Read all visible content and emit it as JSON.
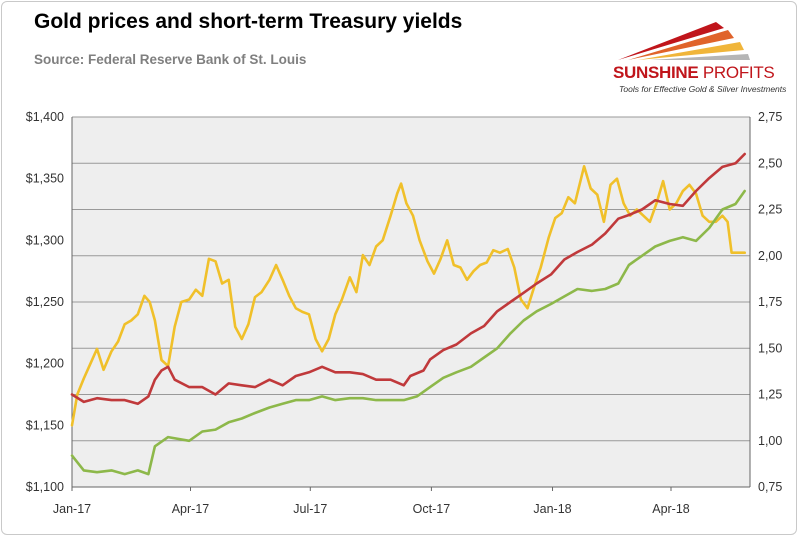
{
  "title": "Gold prices and short-term Treasury yields",
  "subtitle": "Source: Federal Reserve Bank of St. Louis",
  "logo": {
    "name_part1": "SUNSHINE",
    "name_part2": "PROFITS",
    "tagline": "Tools for Effective Gold & Silver Investments"
  },
  "colors": {
    "gold_price": "#f0c02a",
    "yield_red": "#c0393b",
    "yield_green": "#8db84a",
    "plot_background": "#eeeeee",
    "grid": "#999999"
  },
  "chart_data": {
    "type": "line",
    "title": "Gold prices and short-term Treasury yields",
    "legend": "none",
    "grid": true,
    "x": {
      "range": [
        "2017-01-01",
        "2018-05-31"
      ],
      "ticks": [
        {
          "date": "2017-01-01",
          "label": "Jan-17"
        },
        {
          "date": "2017-04-01",
          "label": "Apr-17"
        },
        {
          "date": "2017-07-01",
          "label": "Jul-17"
        },
        {
          "date": "2017-10-01",
          "label": "Oct-17"
        },
        {
          "date": "2018-01-01",
          "label": "Jan-18"
        },
        {
          "date": "2018-04-01",
          "label": "Apr-18"
        }
      ]
    },
    "y_left": {
      "range": [
        1100,
        1400
      ],
      "ticks": [
        1100,
        1150,
        1200,
        1250,
        1300,
        1350,
        1400
      ],
      "tick_labels": [
        "$1,100",
        "$1,150",
        "$1,200",
        "$1,250",
        "$1,300",
        "$1,350",
        "$1,400"
      ]
    },
    "y_right": {
      "range": [
        0.75,
        2.75
      ],
      "ticks": [
        0.75,
        1.0,
        1.25,
        1.5,
        1.75,
        2.0,
        2.25,
        2.5,
        2.75
      ],
      "tick_labels": [
        "0,75",
        "1,00",
        "1,25",
        "1,50",
        "1,75",
        "2,00",
        "2,25",
        "2,50",
        "2,75"
      ]
    },
    "series": [
      {
        "axis": "left",
        "color": "#f0c02a",
        "points": [
          [
            "2017-01-01",
            1150
          ],
          [
            "2017-01-05",
            1175
          ],
          [
            "2017-01-10",
            1188
          ],
          [
            "2017-01-15",
            1200
          ],
          [
            "2017-01-20",
            1212
          ],
          [
            "2017-01-25",
            1195
          ],
          [
            "2017-01-31",
            1210
          ],
          [
            "2017-02-05",
            1218
          ],
          [
            "2017-02-10",
            1232
          ],
          [
            "2017-02-15",
            1235
          ],
          [
            "2017-02-20",
            1240
          ],
          [
            "2017-02-25",
            1255
          ],
          [
            "2017-03-01",
            1250
          ],
          [
            "2017-03-05",
            1235
          ],
          [
            "2017-03-10",
            1203
          ],
          [
            "2017-03-15",
            1198
          ],
          [
            "2017-03-20",
            1230
          ],
          [
            "2017-03-25",
            1250
          ],
          [
            "2017-03-31",
            1252
          ],
          [
            "2017-04-05",
            1260
          ],
          [
            "2017-04-10",
            1255
          ],
          [
            "2017-04-15",
            1285
          ],
          [
            "2017-04-20",
            1283
          ],
          [
            "2017-04-25",
            1265
          ],
          [
            "2017-04-30",
            1268
          ],
          [
            "2017-05-05",
            1230
          ],
          [
            "2017-05-10",
            1220
          ],
          [
            "2017-05-15",
            1232
          ],
          [
            "2017-05-20",
            1254
          ],
          [
            "2017-05-25",
            1258
          ],
          [
            "2017-05-31",
            1268
          ],
          [
            "2017-06-05",
            1280
          ],
          [
            "2017-06-10",
            1268
          ],
          [
            "2017-06-15",
            1255
          ],
          [
            "2017-06-20",
            1245
          ],
          [
            "2017-06-25",
            1242
          ],
          [
            "2017-06-30",
            1240
          ],
          [
            "2017-07-05",
            1220
          ],
          [
            "2017-07-10",
            1210
          ],
          [
            "2017-07-15",
            1220
          ],
          [
            "2017-07-20",
            1240
          ],
          [
            "2017-07-25",
            1252
          ],
          [
            "2017-07-31",
            1270
          ],
          [
            "2017-08-05",
            1258
          ],
          [
            "2017-08-10",
            1288
          ],
          [
            "2017-08-15",
            1280
          ],
          [
            "2017-08-20",
            1295
          ],
          [
            "2017-08-25",
            1300
          ],
          [
            "2017-08-31",
            1320
          ],
          [
            "2017-09-05",
            1338
          ],
          [
            "2017-09-08",
            1346
          ],
          [
            "2017-09-12",
            1330
          ],
          [
            "2017-09-17",
            1320
          ],
          [
            "2017-09-22",
            1300
          ],
          [
            "2017-09-28",
            1283
          ],
          [
            "2017-10-03",
            1273
          ],
          [
            "2017-10-08",
            1285
          ],
          [
            "2017-10-13",
            1300
          ],
          [
            "2017-10-18",
            1280
          ],
          [
            "2017-10-23",
            1278
          ],
          [
            "2017-10-28",
            1268
          ],
          [
            "2017-11-02",
            1275
          ],
          [
            "2017-11-07",
            1280
          ],
          [
            "2017-11-12",
            1282
          ],
          [
            "2017-11-17",
            1292
          ],
          [
            "2017-11-22",
            1290
          ],
          [
            "2017-11-28",
            1293
          ],
          [
            "2017-12-03",
            1278
          ],
          [
            "2017-12-08",
            1252
          ],
          [
            "2017-12-13",
            1245
          ],
          [
            "2017-12-18",
            1262
          ],
          [
            "2017-12-23",
            1278
          ],
          [
            "2017-12-29",
            1302
          ],
          [
            "2018-01-03",
            1318
          ],
          [
            "2018-01-08",
            1322
          ],
          [
            "2018-01-13",
            1335
          ],
          [
            "2018-01-18",
            1330
          ],
          [
            "2018-01-25",
            1360
          ],
          [
            "2018-01-30",
            1342
          ],
          [
            "2018-02-04",
            1337
          ],
          [
            "2018-02-09",
            1315
          ],
          [
            "2018-02-14",
            1345
          ],
          [
            "2018-02-19",
            1350
          ],
          [
            "2018-02-24",
            1330
          ],
          [
            "2018-03-01",
            1320
          ],
          [
            "2018-03-06",
            1325
          ],
          [
            "2018-03-11",
            1320
          ],
          [
            "2018-03-16",
            1315
          ],
          [
            "2018-03-21",
            1330
          ],
          [
            "2018-03-26",
            1348
          ],
          [
            "2018-03-31",
            1325
          ],
          [
            "2018-04-05",
            1330
          ],
          [
            "2018-04-10",
            1340
          ],
          [
            "2018-04-15",
            1345
          ],
          [
            "2018-04-20",
            1338
          ],
          [
            "2018-04-25",
            1320
          ],
          [
            "2018-04-30",
            1315
          ],
          [
            "2018-05-05",
            1315
          ],
          [
            "2018-05-10",
            1320
          ],
          [
            "2018-05-14",
            1315
          ],
          [
            "2018-05-17",
            1290
          ],
          [
            "2018-05-22",
            1290
          ],
          [
            "2018-05-27",
            1290
          ]
        ]
      },
      {
        "axis": "right",
        "color": "#c0393b",
        "points": [
          [
            "2017-01-01",
            1.25
          ],
          [
            "2017-01-10",
            1.21
          ],
          [
            "2017-01-20",
            1.23
          ],
          [
            "2017-01-31",
            1.22
          ],
          [
            "2017-02-10",
            1.22
          ],
          [
            "2017-02-20",
            1.2
          ],
          [
            "2017-02-28",
            1.24
          ],
          [
            "2017-03-05",
            1.33
          ],
          [
            "2017-03-10",
            1.38
          ],
          [
            "2017-03-15",
            1.4
          ],
          [
            "2017-03-20",
            1.33
          ],
          [
            "2017-03-31",
            1.29
          ],
          [
            "2017-04-10",
            1.29
          ],
          [
            "2017-04-20",
            1.25
          ],
          [
            "2017-04-30",
            1.31
          ],
          [
            "2017-05-10",
            1.3
          ],
          [
            "2017-05-20",
            1.29
          ],
          [
            "2017-05-31",
            1.33
          ],
          [
            "2017-06-10",
            1.3
          ],
          [
            "2017-06-20",
            1.35
          ],
          [
            "2017-06-30",
            1.37
          ],
          [
            "2017-07-10",
            1.4
          ],
          [
            "2017-07-20",
            1.37
          ],
          [
            "2017-07-31",
            1.37
          ],
          [
            "2017-08-10",
            1.36
          ],
          [
            "2017-08-20",
            1.33
          ],
          [
            "2017-08-31",
            1.33
          ],
          [
            "2017-09-10",
            1.3
          ],
          [
            "2017-09-15",
            1.35
          ],
          [
            "2017-09-25",
            1.38
          ],
          [
            "2017-09-30",
            1.44
          ],
          [
            "2017-10-10",
            1.49
          ],
          [
            "2017-10-20",
            1.52
          ],
          [
            "2017-10-31",
            1.58
          ],
          [
            "2017-11-10",
            1.62
          ],
          [
            "2017-11-20",
            1.7
          ],
          [
            "2017-11-30",
            1.75
          ],
          [
            "2017-12-10",
            1.8
          ],
          [
            "2017-12-20",
            1.85
          ],
          [
            "2017-12-31",
            1.9
          ],
          [
            "2018-01-10",
            1.98
          ],
          [
            "2018-01-20",
            2.02
          ],
          [
            "2018-01-31",
            2.06
          ],
          [
            "2018-02-10",
            2.12
          ],
          [
            "2018-02-20",
            2.2
          ],
          [
            "2018-02-28",
            2.22
          ],
          [
            "2018-03-10",
            2.25
          ],
          [
            "2018-03-20",
            2.3
          ],
          [
            "2018-03-31",
            2.28
          ],
          [
            "2018-04-10",
            2.27
          ],
          [
            "2018-04-20",
            2.35
          ],
          [
            "2018-04-30",
            2.42
          ],
          [
            "2018-05-10",
            2.48
          ],
          [
            "2018-05-20",
            2.5
          ],
          [
            "2018-05-27",
            2.55
          ]
        ]
      },
      {
        "axis": "right",
        "color": "#8db84a",
        "points": [
          [
            "2017-01-01",
            0.92
          ],
          [
            "2017-01-10",
            0.84
          ],
          [
            "2017-01-20",
            0.83
          ],
          [
            "2017-01-31",
            0.84
          ],
          [
            "2017-02-10",
            0.82
          ],
          [
            "2017-02-20",
            0.84
          ],
          [
            "2017-02-28",
            0.82
          ],
          [
            "2017-03-05",
            0.97
          ],
          [
            "2017-03-15",
            1.02
          ],
          [
            "2017-03-31",
            1.0
          ],
          [
            "2017-04-10",
            1.05
          ],
          [
            "2017-04-20",
            1.06
          ],
          [
            "2017-04-30",
            1.1
          ],
          [
            "2017-05-10",
            1.12
          ],
          [
            "2017-05-20",
            1.15
          ],
          [
            "2017-05-31",
            1.18
          ],
          [
            "2017-06-10",
            1.2
          ],
          [
            "2017-06-20",
            1.22
          ],
          [
            "2017-06-30",
            1.22
          ],
          [
            "2017-07-10",
            1.24
          ],
          [
            "2017-07-20",
            1.22
          ],
          [
            "2017-07-31",
            1.23
          ],
          [
            "2017-08-10",
            1.23
          ],
          [
            "2017-08-20",
            1.22
          ],
          [
            "2017-08-31",
            1.22
          ],
          [
            "2017-09-10",
            1.22
          ],
          [
            "2017-09-20",
            1.24
          ],
          [
            "2017-09-30",
            1.29
          ],
          [
            "2017-10-10",
            1.34
          ],
          [
            "2017-10-20",
            1.37
          ],
          [
            "2017-10-31",
            1.4
          ],
          [
            "2017-11-10",
            1.45
          ],
          [
            "2017-11-20",
            1.5
          ],
          [
            "2017-11-30",
            1.58
          ],
          [
            "2017-12-10",
            1.65
          ],
          [
            "2017-12-20",
            1.7
          ],
          [
            "2017-12-31",
            1.74
          ],
          [
            "2018-01-10",
            1.78
          ],
          [
            "2018-01-20",
            1.82
          ],
          [
            "2018-01-31",
            1.81
          ],
          [
            "2018-02-10",
            1.82
          ],
          [
            "2018-02-20",
            1.85
          ],
          [
            "2018-02-28",
            1.95
          ],
          [
            "2018-03-10",
            2.0
          ],
          [
            "2018-03-20",
            2.05
          ],
          [
            "2018-03-31",
            2.08
          ],
          [
            "2018-04-10",
            2.1
          ],
          [
            "2018-04-20",
            2.08
          ],
          [
            "2018-04-30",
            2.15
          ],
          [
            "2018-05-10",
            2.25
          ],
          [
            "2018-05-20",
            2.28
          ],
          [
            "2018-05-27",
            2.35
          ]
        ]
      }
    ]
  }
}
